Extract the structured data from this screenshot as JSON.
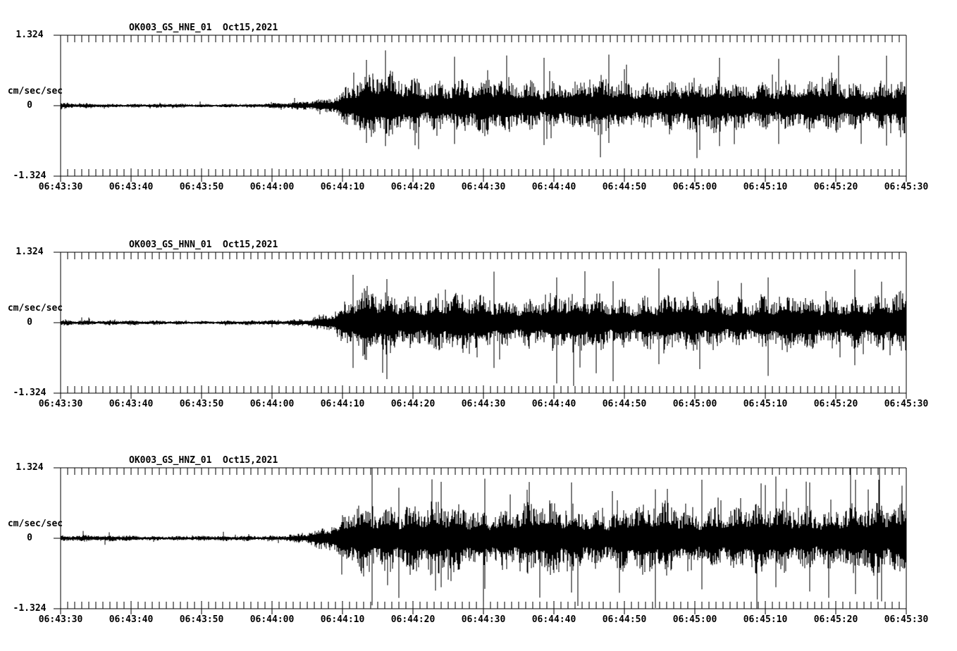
{
  "app": {
    "type": "seismic-waveform-viewer",
    "background_color": "#ffffff",
    "trace_color": "#000000"
  },
  "axes": {
    "y": {
      "unit_label": "cm/sec/sec",
      "max_label": "1.324",
      "zero_label": "0",
      "min_label": "-1.324",
      "max": 1.324,
      "min": -1.324
    },
    "x": {
      "start_label": "06:43:30",
      "end_label": "06:45:30",
      "major_interval_sec": 10,
      "minor_interval_sec": 1,
      "tick_labels": [
        "06:43:30",
        "06:43:40",
        "06:43:50",
        "06:44:00",
        "06:44:10",
        "06:44:20",
        "06:44:30",
        "06:44:40",
        "06:44:50",
        "06:45:00",
        "06:45:10",
        "06:45:20",
        "06:45:30"
      ]
    }
  },
  "chart_data": {
    "type": "line",
    "subtype": "seismogram-3-component",
    "station": "OK003",
    "network": "GS",
    "date": "Oct15,2021",
    "components": [
      "HNE",
      "HNN",
      "HNZ"
    ],
    "ylabel": "cm/sec/sec",
    "ylim": [
      -1.324,
      1.324
    ],
    "x_window": [
      "06:43:30",
      "06:45:30"
    ],
    "duration_sec": 120,
    "event_onset_sec_after_start": 35,
    "representation": "amplitude envelope control points [t_sec, amp] and standout spikes [t_sec, up_amp, down_amp] in cm/sec/sec",
    "series": [
      {
        "name": "OK003_GS_HNE_01",
        "component": "HNE",
        "title": "OK003_GS_HNE_01  Oct15,2021",
        "seed": 101,
        "spike_prob": 0.05,
        "envelope": [
          [
            0,
            0.05
          ],
          [
            6,
            0.042
          ],
          [
            12,
            0.035
          ],
          [
            20,
            0.032
          ],
          [
            28,
            0.036
          ],
          [
            31,
            0.045
          ],
          [
            33,
            0.06
          ],
          [
            35,
            0.09
          ],
          [
            37,
            0.13
          ],
          [
            39,
            0.2
          ],
          [
            40.5,
            0.33
          ],
          [
            42,
            0.5
          ],
          [
            44,
            0.55
          ],
          [
            47,
            0.5
          ],
          [
            52,
            0.46
          ],
          [
            58,
            0.44
          ],
          [
            66,
            0.43
          ],
          [
            75,
            0.44
          ],
          [
            85,
            0.42
          ],
          [
            95,
            0.43
          ],
          [
            105,
            0.43
          ],
          [
            120,
            0.44
          ]
        ],
        "spikes": [
          [
            43.4,
            0.86,
            0.7
          ],
          [
            46.1,
            1.04,
            0.76
          ],
          [
            55.9,
            0.92,
            0.72
          ],
          [
            68.6,
            0.9,
            0.74
          ],
          [
            77.8,
            0.96,
            0.7
          ],
          [
            93.5,
            0.9,
            0.76
          ],
          [
            101.9,
            0.88,
            0.72
          ],
          [
            117.2,
            0.94,
            0.75
          ]
        ]
      },
      {
        "name": "OK003_GS_HNN_01",
        "component": "HNN",
        "title": "OK003_GS_HNN_01  Oct15,2021",
        "seed": 202,
        "spike_prob": 0.055,
        "envelope": [
          [
            0,
            0.052
          ],
          [
            6,
            0.044
          ],
          [
            12,
            0.037
          ],
          [
            20,
            0.034
          ],
          [
            28,
            0.038
          ],
          [
            31,
            0.048
          ],
          [
            33,
            0.065
          ],
          [
            35,
            0.095
          ],
          [
            37,
            0.14
          ],
          [
            39,
            0.22
          ],
          [
            40.5,
            0.36
          ],
          [
            42,
            0.52
          ],
          [
            44,
            0.58
          ],
          [
            47,
            0.52
          ],
          [
            52,
            0.48
          ],
          [
            58,
            0.47
          ],
          [
            66,
            0.46
          ],
          [
            75,
            0.47
          ],
          [
            85,
            0.45
          ],
          [
            95,
            0.46
          ],
          [
            105,
            0.45
          ],
          [
            120,
            0.47
          ]
        ],
        "spikes": [
          [
            41.5,
            0.9,
            0.85
          ],
          [
            46.3,
            0.82,
            1.06
          ],
          [
            61.5,
            0.96,
            0.85
          ],
          [
            70.4,
            0.85,
            1.0
          ],
          [
            78.4,
            0.78,
            1.1
          ],
          [
            84.9,
            1.02,
            0.78
          ],
          [
            100.4,
            0.85,
            1.0
          ],
          [
            112.7,
            1.0,
            0.8
          ]
        ]
      },
      {
        "name": "OK003_GS_HNZ_01",
        "component": "HNZ",
        "title": "OK003_GS_HNZ_01  Oct15,2021",
        "seed": 303,
        "spike_prob": 0.09,
        "envelope": [
          [
            0,
            0.06
          ],
          [
            6,
            0.05
          ],
          [
            12,
            0.042
          ],
          [
            20,
            0.04
          ],
          [
            28,
            0.045
          ],
          [
            31,
            0.055
          ],
          [
            33,
            0.075
          ],
          [
            35,
            0.11
          ],
          [
            37,
            0.17
          ],
          [
            39,
            0.26
          ],
          [
            40.5,
            0.42
          ],
          [
            42,
            0.6
          ],
          [
            44,
            0.68
          ],
          [
            47,
            0.62
          ],
          [
            52,
            0.58
          ],
          [
            58,
            0.56
          ],
          [
            66,
            0.57
          ],
          [
            75,
            0.56
          ],
          [
            85,
            0.57
          ],
          [
            95,
            0.56
          ],
          [
            105,
            0.57
          ],
          [
            120,
            0.58
          ]
        ],
        "spikes": [
          [
            44.2,
            1.32,
            1.26
          ],
          [
            48,
            0.95,
            1.12
          ],
          [
            54,
            1.06,
            0.92
          ],
          [
            60.2,
            1.12,
            0.95
          ],
          [
            72.5,
            1.05,
            1.02
          ],
          [
            84.4,
            0.92,
            1.31
          ],
          [
            91,
            1.1,
            0.96
          ],
          [
            101.5,
            1.16,
            0.92
          ],
          [
            106.3,
            1.05,
            1.0
          ],
          [
            112.8,
            1.1,
            1.05
          ]
        ]
      }
    ]
  }
}
